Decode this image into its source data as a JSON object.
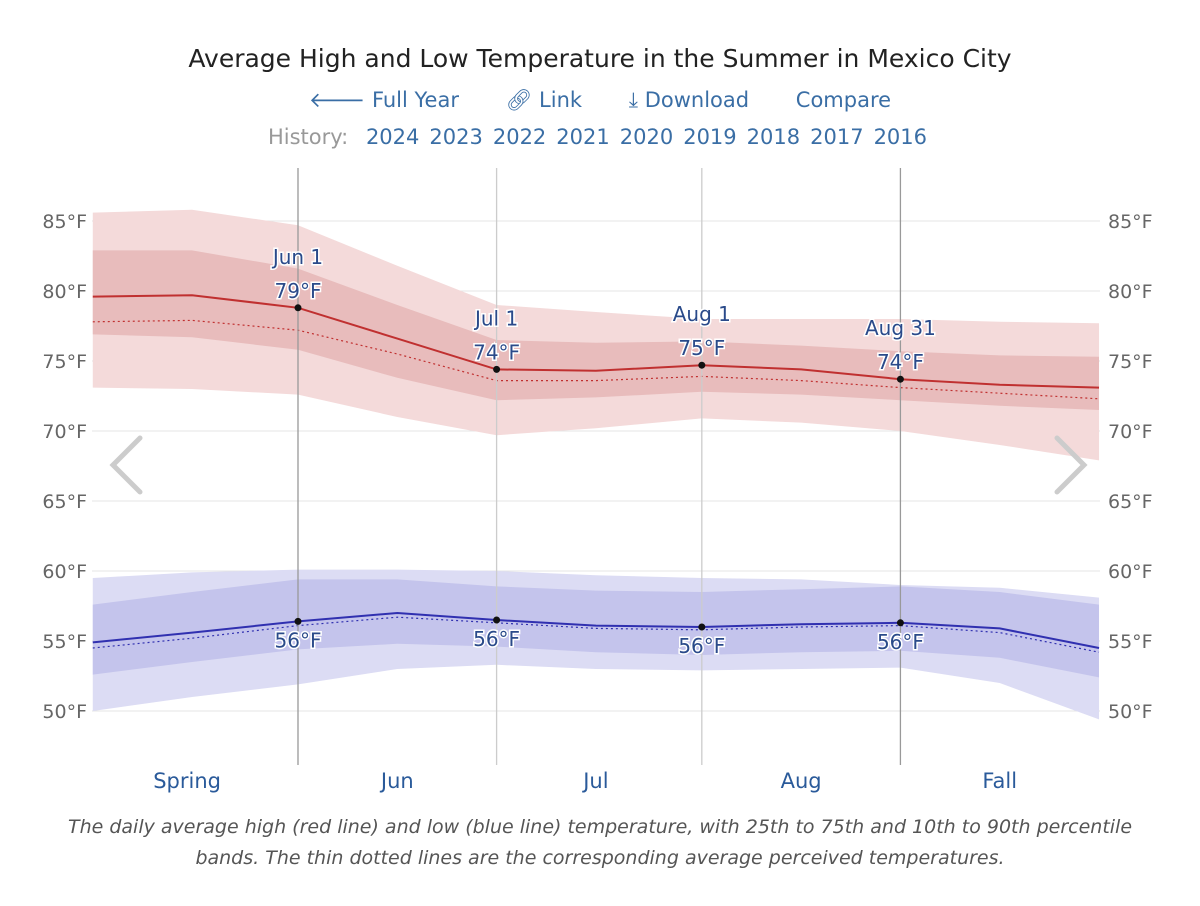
{
  "header": {
    "title": "Average High and Low Temperature in the Summer in Mexico City",
    "nav": [
      {
        "icon": "arrow-left-icon",
        "label": "Full Year"
      },
      {
        "icon": "link-icon",
        "label": "Link"
      },
      {
        "icon": "download-icon",
        "label": "Download"
      },
      {
        "icon": "",
        "label": "Compare"
      }
    ],
    "history_label": "History:",
    "history_years": [
      "2024",
      "2023",
      "2022",
      "2021",
      "2020",
      "2019",
      "2018",
      "2017",
      "2016"
    ]
  },
  "chart_data": {
    "type": "area",
    "title": "Average High and Low Temperature in the Summer in Mexico City",
    "xrange": [
      "May 1",
      "Sep 30"
    ],
    "ylim": [
      50,
      85
    ],
    "y_ticks": [
      "50°F",
      "55°F",
      "60°F",
      "65°F",
      "70°F",
      "75°F",
      "80°F",
      "85°F"
    ],
    "y_tick_values": [
      50,
      55,
      60,
      65,
      70,
      75,
      80,
      85
    ],
    "grid": true,
    "colors": {
      "high": "#c03030",
      "low": "#3030b0",
      "high_band_outer": "#f4dada",
      "high_band_inner": "#e8bcbc",
      "low_band_outer": "#dcdcf4",
      "low_band_inner": "#c4c4ec"
    },
    "x": [
      "May 1",
      "May 16",
      "Jun 1",
      "Jun 16",
      "Jul 1",
      "Jul 16",
      "Aug 1",
      "Aug 16",
      "Aug 31",
      "Sep 15",
      "Sep 30"
    ],
    "doy": [
      121,
      136,
      152,
      167,
      182,
      197,
      213,
      228,
      243,
      258,
      273
    ],
    "high": {
      "avg": [
        79.6,
        79.7,
        78.8,
        76.6,
        74.4,
        74.3,
        74.7,
        74.4,
        73.7,
        73.3,
        73.1
      ],
      "perceived": [
        77.8,
        77.9,
        77.2,
        75.5,
        73.6,
        73.6,
        73.9,
        73.6,
        73.1,
        72.7,
        72.3
      ],
      "p25": [
        76.9,
        76.7,
        75.8,
        73.8,
        72.2,
        72.4,
        72.8,
        72.6,
        72.2,
        71.8,
        71.5
      ],
      "p75": [
        82.9,
        82.9,
        81.6,
        79.0,
        76.5,
        76.3,
        76.4,
        76.1,
        75.7,
        75.4,
        75.3
      ],
      "p10": [
        73.1,
        73.0,
        72.6,
        71.0,
        69.7,
        70.2,
        70.9,
        70.6,
        70.0,
        69.0,
        67.9
      ],
      "p90": [
        85.6,
        85.8,
        84.7,
        81.8,
        79.0,
        78.5,
        78.0,
        78.0,
        78.0,
        77.8,
        77.7
      ]
    },
    "low": {
      "avg": [
        54.9,
        55.6,
        56.4,
        57.0,
        56.5,
        56.1,
        56.0,
        56.2,
        56.3,
        55.9,
        54.5
      ],
      "perceived": [
        54.5,
        55.2,
        56.1,
        56.7,
        56.3,
        55.9,
        55.8,
        56.0,
        56.1,
        55.6,
        54.2
      ],
      "p25": [
        52.6,
        53.5,
        54.4,
        54.8,
        54.6,
        54.2,
        54.0,
        54.2,
        54.3,
        53.8,
        52.4
      ],
      "p75": [
        57.6,
        58.5,
        59.4,
        59.4,
        58.9,
        58.6,
        58.5,
        58.7,
        58.9,
        58.5,
        57.6
      ],
      "p10": [
        50.0,
        51.0,
        51.9,
        53.0,
        53.3,
        53.0,
        52.9,
        53.0,
        53.1,
        52.0,
        49.4
      ],
      "p90": [
        59.5,
        59.9,
        60.1,
        60.1,
        60.0,
        59.7,
        59.5,
        59.4,
        59.0,
        58.8,
        58.1
      ]
    },
    "annotations": [
      {
        "date": "Jun 1",
        "doy": 152,
        "high": "79°F",
        "low": "56°F",
        "high_value": 78.8,
        "low_value": 56.4
      },
      {
        "date": "Jul 1",
        "doy": 182,
        "high": "74°F",
        "low": "56°F",
        "high_value": 74.4,
        "low_value": 56.5
      },
      {
        "date": "Aug 1",
        "doy": 213,
        "high": "75°F",
        "low": "56°F",
        "high_value": 74.7,
        "low_value": 56.0
      },
      {
        "date": "Aug 31",
        "doy": 243,
        "high": "74°F",
        "low": "56°F",
        "high_value": 73.7,
        "low_value": 56.3
      }
    ],
    "x_labels": [
      {
        "label": "Spring",
        "doy": 136
      },
      {
        "label": "Jun",
        "doy": 167
      },
      {
        "label": "Jul",
        "doy": 197
      },
      {
        "label": "Aug",
        "doy": 228
      },
      {
        "label": "Fall",
        "doy": 258
      }
    ]
  },
  "caption": "The daily average high (red line) and low (blue line) temperature, with 25th to 75th and 10th to 90th percentile bands. The thin dotted lines are the corresponding average perceived temperatures."
}
